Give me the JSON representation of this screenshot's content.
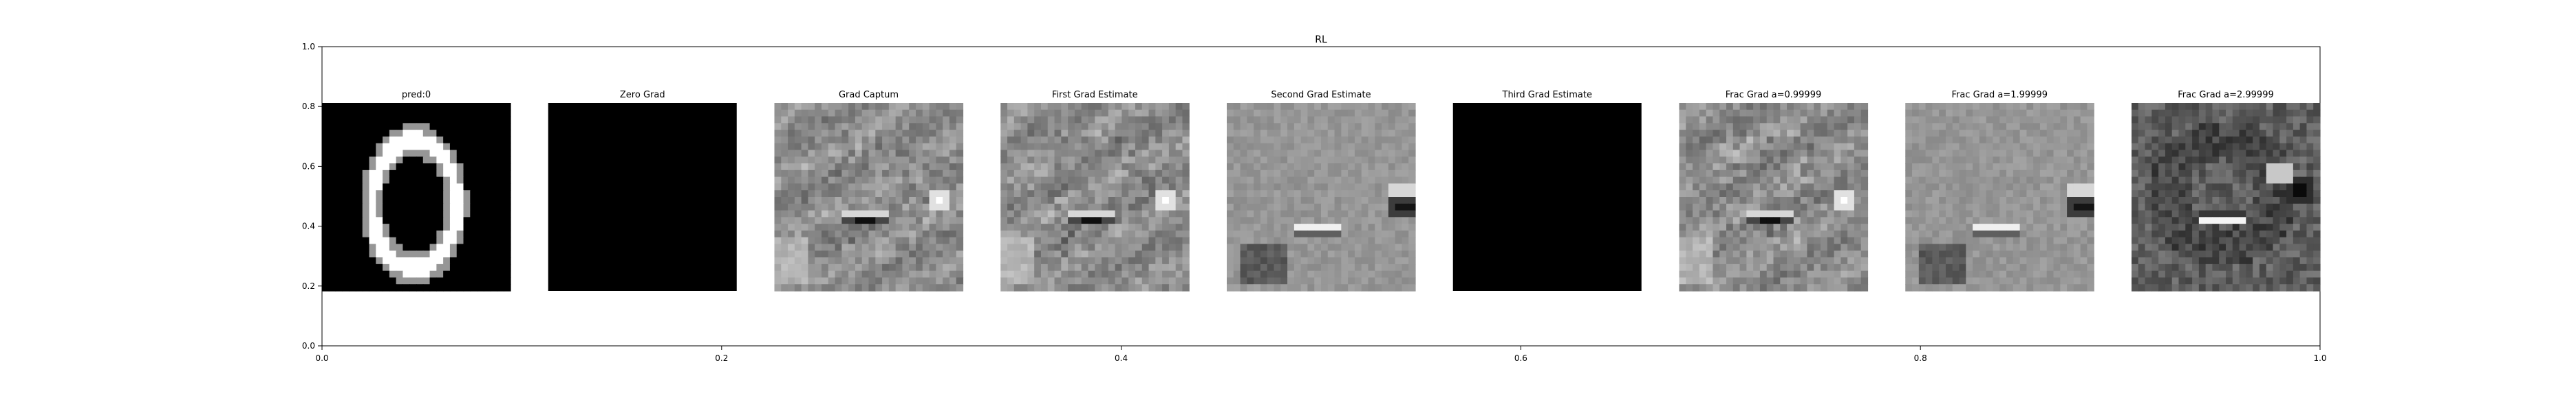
{
  "chart_data": {
    "type": "heatmap",
    "title": "RL",
    "xlim": [
      0,
      1
    ],
    "ylim": [
      0,
      1
    ],
    "x_ticks": [
      "0.0",
      "0.2",
      "0.4",
      "0.6",
      "0.8",
      "1.0"
    ],
    "y_ticks": [
      "0.0",
      "0.2",
      "0.4",
      "0.6",
      "0.8",
      "1.0"
    ],
    "grid": false,
    "panels": [
      {
        "title": "pred:0",
        "kind": "digit"
      },
      {
        "title": "Zero Grad",
        "kind": "black"
      },
      {
        "title": "Grad Captum",
        "kind": "gradA"
      },
      {
        "title": "First Grad Estimate",
        "kind": "gradA"
      },
      {
        "title": "Second Grad Estimate",
        "kind": "gradB"
      },
      {
        "title": "Third Grad Estimate",
        "kind": "black"
      },
      {
        "title": "Frac Grad a=0.99999",
        "kind": "gradA"
      },
      {
        "title": "Frac Grad a=1.99999",
        "kind": "gradB"
      },
      {
        "title": "Frac Grad a=2.99999",
        "kind": "gradC"
      }
    ]
  }
}
